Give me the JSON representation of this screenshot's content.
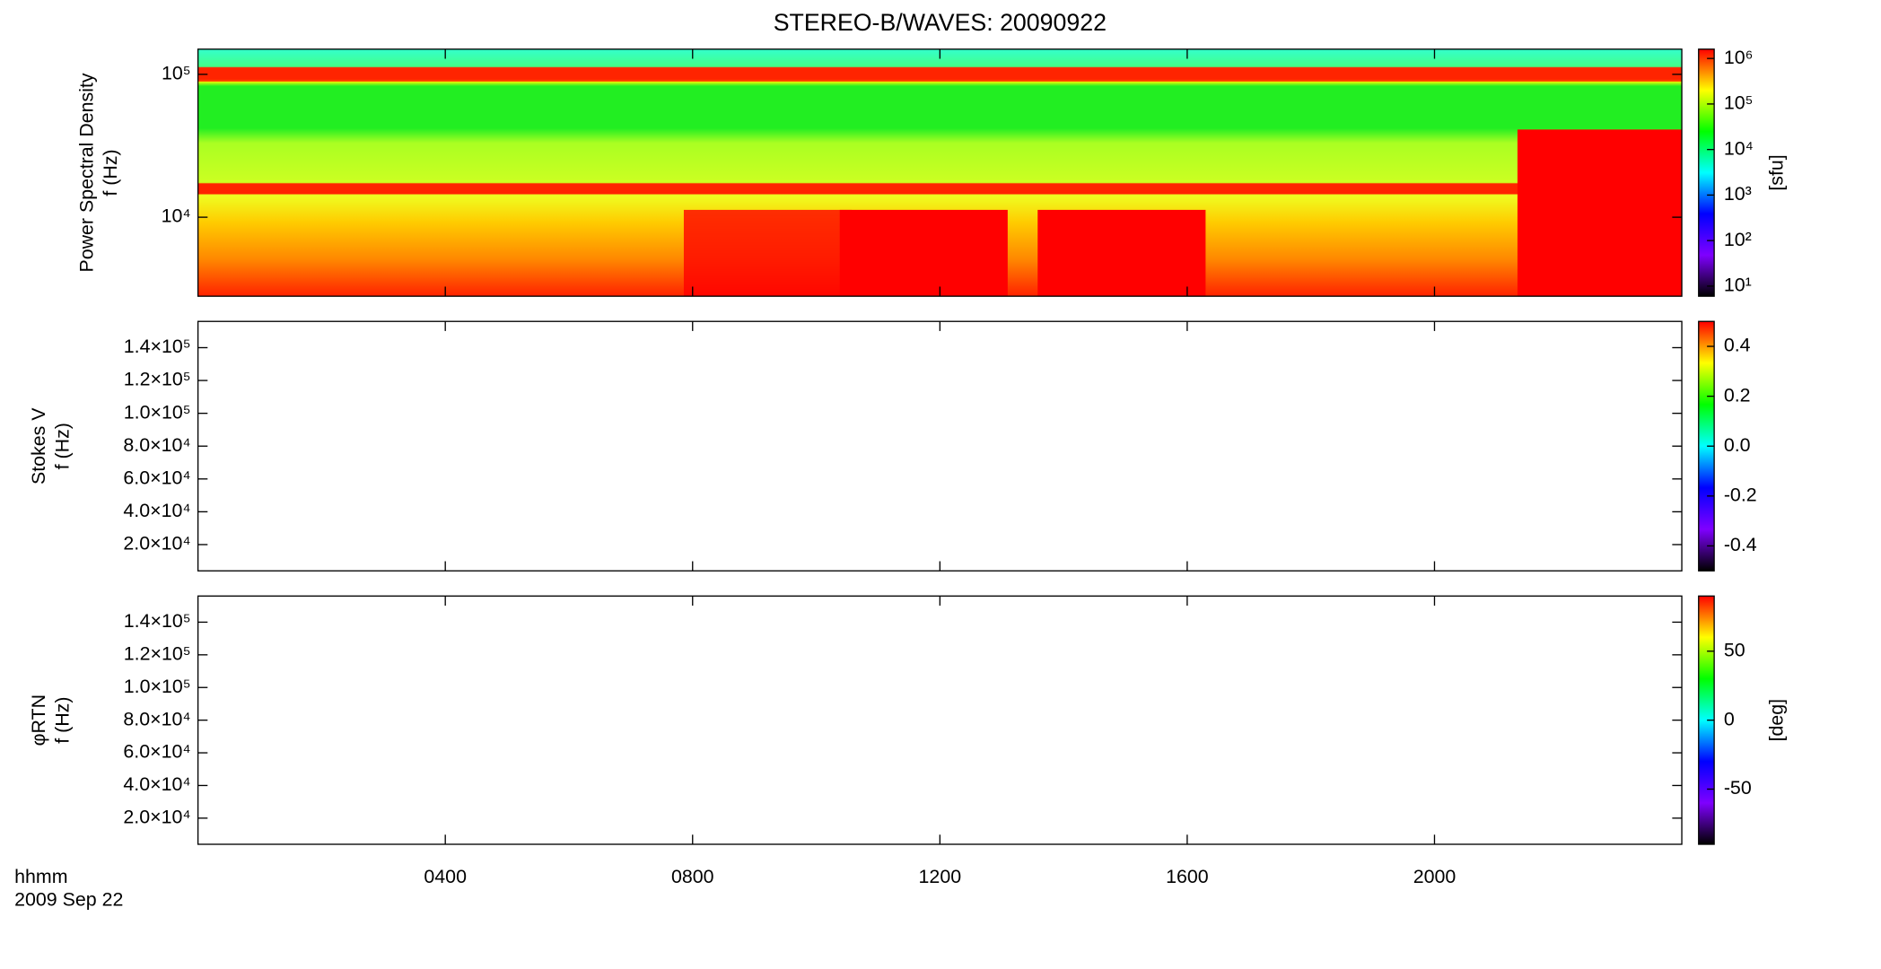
{
  "chart_data": [
    {
      "type": "heatmap",
      "title": "STEREO-B/WAVES: 20090922",
      "ylabel": [
        "Power Spectral Density",
        "f (Hz)"
      ],
      "ylog": true,
      "ylim": [
        2800,
        150000
      ],
      "yticks": [
        {
          "value": 10000,
          "label": "10⁴"
        },
        {
          "value": 100000,
          "label": "10⁵"
        }
      ],
      "colormap": [
        "#000000",
        "#7f00ff",
        "#0000ff",
        "#00ffff",
        "#00ff00",
        "#ffff00",
        "#ff0000"
      ],
      "colorbar": {
        "label": "[sfu]",
        "log": true,
        "lim": [
          6,
          1600000
        ],
        "ticks": [
          {
            "value": 10,
            "label": "10¹"
          },
          {
            "value": 100,
            "label": "10²"
          },
          {
            "value": 1000,
            "label": "10³"
          },
          {
            "value": 10000,
            "label": "10⁴"
          },
          {
            "value": 100000,
            "label": "10⁵"
          },
          {
            "value": 1000000,
            "label": "10⁶"
          }
        ]
      }
    },
    {
      "type": "heatmap",
      "ylabel": [
        "Stokes V",
        "f (Hz)"
      ],
      "ylog": false,
      "ylim": [
        4000,
        156000
      ],
      "yticks": [
        {
          "value": 20000,
          "label": "2.0×10⁴"
        },
        {
          "value": 40000,
          "label": "4.0×10⁴"
        },
        {
          "value": 60000,
          "label": "6.0×10⁴"
        },
        {
          "value": 80000,
          "label": "8.0×10⁴"
        },
        {
          "value": 100000,
          "label": "1.0×10⁵"
        },
        {
          "value": 120000,
          "label": "1.2×10⁵"
        },
        {
          "value": 140000,
          "label": "1.4×10⁵"
        }
      ],
      "colormap": [
        "#000000",
        "#7f00ff",
        "#0000ff",
        "#00ffff",
        "#00ff00",
        "#ffff00",
        "#ff0000"
      ],
      "colorbar": {
        "log": false,
        "lim": [
          -0.5,
          0.5
        ],
        "ticks": [
          -0.4,
          -0.2,
          {
            "value": 0,
            "label": "0.0"
          },
          0.2,
          0.4
        ]
      }
    },
    {
      "type": "heatmap",
      "ylabel": [
        "φRTN",
        "f (Hz)"
      ],
      "ylog": false,
      "ylim": [
        4000,
        156000
      ],
      "yticks": [
        {
          "value": 20000,
          "label": "2.0×10⁴"
        },
        {
          "value": 40000,
          "label": "4.0×10⁴"
        },
        {
          "value": 60000,
          "label": "6.0×10⁴"
        },
        {
          "value": 80000,
          "label": "8.0×10⁴"
        },
        {
          "value": 100000,
          "label": "1.0×10⁵"
        },
        {
          "value": 120000,
          "label": "1.2×10⁵"
        },
        {
          "value": 140000,
          "label": "1.4×10⁵"
        }
      ],
      "colormap": [
        "#000000",
        "#7f00ff",
        "#0000ff",
        "#00ffff",
        "#00ff00",
        "#ffff00",
        "#ff0000"
      ],
      "colorbar": {
        "label": "[deg]",
        "log": false,
        "lim": [
          -90,
          90
        ],
        "ticks": [
          -50,
          0,
          50
        ]
      },
      "xlabel": "hhmm",
      "date": "2009 Sep 22",
      "xlim": [
        0,
        24
      ],
      "xticks": [
        {
          "value": 4,
          "label": "0400"
        },
        {
          "value": 8,
          "label": "0800"
        },
        {
          "value": 12,
          "label": "1200"
        },
        {
          "value": 16,
          "label": "1600"
        },
        {
          "value": 20,
          "label": "2000"
        }
      ]
    }
  ]
}
